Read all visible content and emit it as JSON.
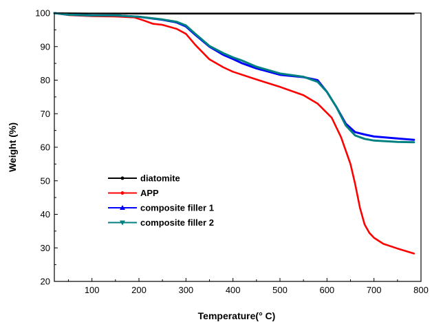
{
  "chart_data": {
    "type": "line",
    "title": "",
    "xlabel": "Temperature(° C)",
    "ylabel": "Weight (%)",
    "xlim": [
      20,
      800
    ],
    "ylim": [
      20,
      100
    ],
    "x_ticks": [
      100,
      200,
      300,
      400,
      500,
      600,
      700,
      800
    ],
    "y_ticks": [
      20,
      30,
      40,
      50,
      60,
      70,
      80,
      90,
      100
    ],
    "grid": false,
    "legend_position": "center-left",
    "series": [
      {
        "name": "diatomite",
        "color": "#000000",
        "marker": "circle",
        "x": [
          20,
          100,
          200,
          300,
          400,
          500,
          600,
          700,
          785
        ],
        "y": [
          100,
          99.9,
          99.8,
          99.8,
          99.8,
          99.8,
          99.8,
          99.8,
          99.8
        ]
      },
      {
        "name": "APP",
        "color": "#ff0000",
        "marker": "circle",
        "x": [
          20,
          50,
          100,
          150,
          190,
          210,
          230,
          250,
          280,
          300,
          320,
          350,
          380,
          400,
          450,
          500,
          550,
          580,
          610,
          630,
          650,
          660,
          670,
          680,
          690,
          700,
          720,
          750,
          785
        ],
        "y": [
          100,
          99.4,
          99.1,
          99,
          98.7,
          97.8,
          96.8,
          96.5,
          95.3,
          93.8,
          90.5,
          86.2,
          83.8,
          82.5,
          80.2,
          78,
          75.5,
          73,
          68.8,
          63,
          55,
          49,
          42,
          37,
          34.5,
          33,
          31.2,
          29.8,
          28.3
        ]
      },
      {
        "name": "composite filler 1",
        "color": "#0000ff",
        "marker": "triangle-up",
        "x": [
          20,
          50,
          100,
          150,
          200,
          250,
          280,
          300,
          320,
          350,
          380,
          400,
          420,
          450,
          500,
          550,
          580,
          600,
          620,
          640,
          660,
          680,
          700,
          750,
          785
        ],
        "y": [
          100,
          99.5,
          99.3,
          99.3,
          98.9,
          98,
          97.2,
          96,
          93.5,
          90,
          87.5,
          86.3,
          85,
          83.5,
          81.6,
          80.9,
          80,
          76.5,
          72,
          67,
          64.5,
          63.8,
          63.2,
          62.6,
          62.2
        ]
      },
      {
        "name": "composite filler 2",
        "color": "#008080",
        "marker": "triangle-down",
        "x": [
          20,
          50,
          100,
          150,
          200,
          250,
          280,
          300,
          320,
          350,
          380,
          400,
          420,
          450,
          500,
          550,
          580,
          600,
          620,
          640,
          660,
          680,
          700,
          750,
          785
        ],
        "y": [
          100,
          99.5,
          99.3,
          99.3,
          98.9,
          98.1,
          97.4,
          96.3,
          93.8,
          90.2,
          88,
          86.8,
          85.8,
          84,
          82,
          81,
          79.5,
          76.5,
          72,
          66.5,
          63.5,
          62.5,
          62,
          61.6,
          61.5
        ]
      }
    ]
  }
}
